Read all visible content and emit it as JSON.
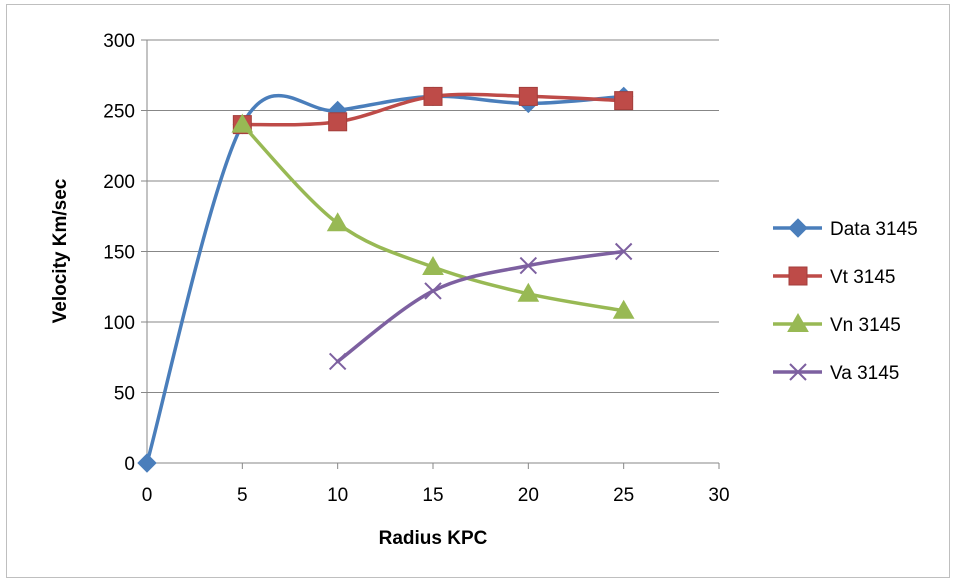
{
  "chart_data": {
    "type": "line",
    "smooth": true,
    "title": "",
    "xlabel": "Radius KPC",
    "ylabel": "Velocity Km/sec",
    "xlim": [
      0,
      30
    ],
    "ylim": [
      0,
      300
    ],
    "xticks": [
      0,
      5,
      10,
      15,
      20,
      25,
      30
    ],
    "yticks": [
      0,
      50,
      100,
      150,
      200,
      250,
      300
    ],
    "grid": "horizontal",
    "legend_position": "right",
    "series": [
      {
        "name": "Data 3145",
        "color": "#4a7ebb",
        "marker": "diamond",
        "x": [
          0,
          5,
          10,
          15,
          20,
          25
        ],
        "y": [
          0,
          240,
          250,
          260,
          255,
          260
        ]
      },
      {
        "name": "Vt 3145",
        "color": "#be4b48",
        "marker": "square",
        "x": [
          5,
          10,
          15,
          20,
          25
        ],
        "y": [
          240,
          242,
          260,
          260,
          257
        ]
      },
      {
        "name": "Vn 3145",
        "color": "#98b954",
        "marker": "triangle",
        "x": [
          5,
          10,
          15,
          20,
          25
        ],
        "y": [
          240,
          170,
          139,
          120,
          108
        ]
      },
      {
        "name": "Va 3145",
        "color": "#7d60a0",
        "marker": "x",
        "x": [
          10,
          15,
          20,
          25
        ],
        "y": [
          72,
          122,
          140,
          150
        ]
      }
    ]
  }
}
